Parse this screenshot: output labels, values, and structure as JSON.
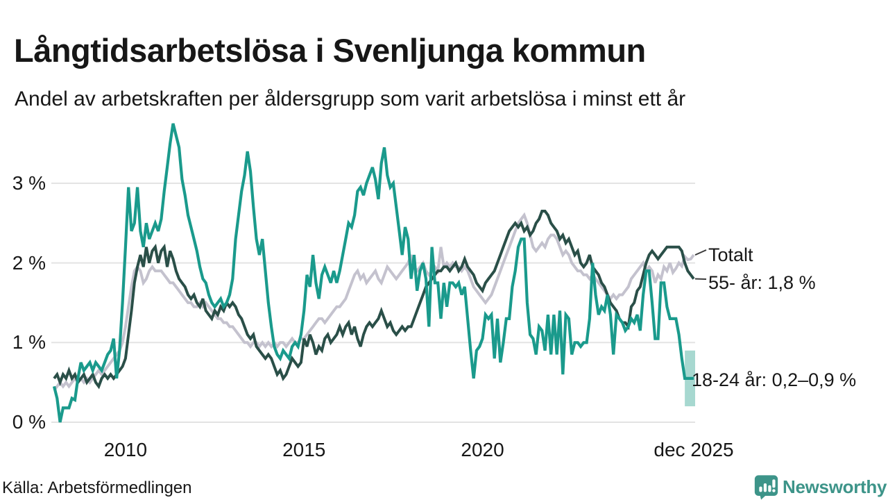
{
  "header": {
    "title": "Långtidsarbetslösa i Svenljunga kommun",
    "subtitle": "Andel av arbetskraften per åldersgrupp som varit arbetslösa i minst ett år"
  },
  "footer": {
    "source": "Källa: Arbetsförmedlingen",
    "brand": "Newsworthy"
  },
  "colors": {
    "teal_line": "#1a9a8c",
    "dark_line": "#2a4f48",
    "gray_line": "#c4c2ce",
    "band_fill": "#a7d8d0",
    "gridline": "#e3e3e3",
    "text": "#171717",
    "brand_teal": "#3d9489",
    "connector": "#3a3a3a"
  },
  "chart_data": {
    "type": "line",
    "title": "Långtidsarbetslösa i Svenljunga kommun",
    "subtitle": "Andel av arbetskraften per åldersgrupp som varit arbetslösa i minst ett år",
    "unit": "% av arbetskraften",
    "frequency": "monthly",
    "x_start": "2008-01",
    "x_end": "2025-12",
    "grid": "horizontal",
    "ylim": [
      0,
      3.9
    ],
    "y_ticks": [
      0,
      1,
      2,
      3
    ],
    "y_tick_labels": [
      "0 %",
      "1 %",
      "2 %",
      "3 %"
    ],
    "x_ticks": [
      {
        "label": "2010",
        "index": 24
      },
      {
        "label": "2015",
        "index": 84
      },
      {
        "label": "2020",
        "index": 144
      },
      {
        "label": "dec 2025",
        "index": 215
      }
    ],
    "series": [
      {
        "name": "Totalt",
        "color": "#c4c2ce",
        "stroke_width": 4,
        "values": [
          0.4,
          0.45,
          0.5,
          0.45,
          0.5,
          0.45,
          0.5,
          0.55,
          0.5,
          0.55,
          0.5,
          0.55,
          0.5,
          0.55,
          0.6,
          0.65,
          0.6,
          0.65,
          0.7,
          0.75,
          0.8,
          0.85,
          0.9,
          1.0,
          1.2,
          1.45,
          1.7,
          1.9,
          1.95,
          1.9,
          1.75,
          1.8,
          1.9,
          1.95,
          1.9,
          1.9,
          1.9,
          1.85,
          1.8,
          1.75,
          1.75,
          1.7,
          1.65,
          1.6,
          1.55,
          1.5,
          1.5,
          1.45,
          1.45,
          1.5,
          1.45,
          1.5,
          1.45,
          1.4,
          1.35,
          1.3,
          1.3,
          1.25,
          1.25,
          1.2,
          1.2,
          1.15,
          1.1,
          1.05,
          1.0,
          1.0,
          0.95,
          1.0,
          1.0,
          0.95,
          1.0,
          0.95,
          1.0,
          0.95,
          1.0,
          0.95,
          1.0,
          1.0,
          0.95,
          1.0,
          1.05,
          1.0,
          1.0,
          1.05,
          1.05,
          1.1,
          1.15,
          1.2,
          1.25,
          1.3,
          1.3,
          1.25,
          1.3,
          1.35,
          1.4,
          1.45,
          1.45,
          1.5,
          1.55,
          1.65,
          1.75,
          1.85,
          1.9,
          1.8,
          1.85,
          1.75,
          1.8,
          1.85,
          1.9,
          1.8,
          1.75,
          1.85,
          1.95,
          1.9,
          1.85,
          1.8,
          1.85,
          1.9,
          1.95,
          2.0,
          2.1,
          1.95,
          1.9,
          1.95,
          2.0,
          1.9,
          1.85,
          1.9,
          1.95,
          1.9,
          2.2,
          1.95,
          2.0,
          1.95,
          2.0,
          1.95,
          1.95,
          1.9,
          1.95,
          1.9,
          1.8,
          1.7,
          1.65,
          1.6,
          1.55,
          1.5,
          1.55,
          1.6,
          1.7,
          1.8,
          1.9,
          2.0,
          2.1,
          2.2,
          2.3,
          2.4,
          2.5,
          2.55,
          2.6,
          2.5,
          2.35,
          2.2,
          2.15,
          2.2,
          2.25,
          2.2,
          2.3,
          2.35,
          2.35,
          2.3,
          2.2,
          2.1,
          2.15,
          2.1,
          2.0,
          1.95,
          1.9,
          1.9,
          1.85,
          1.85,
          1.8,
          1.85,
          1.8,
          1.75,
          1.7,
          1.65,
          1.6,
          1.55,
          1.6,
          1.55,
          1.6,
          1.6,
          1.65,
          1.7,
          1.8,
          1.85,
          1.9,
          1.95,
          2.0,
          1.9,
          1.95,
          1.9,
          1.75,
          1.85,
          1.8,
          1.95,
          1.9,
          2.0,
          1.88,
          1.93,
          2.0,
          1.96,
          2.08,
          2.04,
          2.05,
          2.1
        ]
      },
      {
        "name": "55- år",
        "color": "#2a4f48",
        "stroke_width": 4,
        "values": [
          0.55,
          0.6,
          0.5,
          0.6,
          0.55,
          0.65,
          0.55,
          0.6,
          0.5,
          0.55,
          0.6,
          0.5,
          0.55,
          0.6,
          0.5,
          0.45,
          0.55,
          0.6,
          0.55,
          0.6,
          0.55,
          0.6,
          0.65,
          0.7,
          0.8,
          1.1,
          1.4,
          1.75,
          1.95,
          2.1,
          1.95,
          2.2,
          2.0,
          2.15,
          2.2,
          2.0,
          2.15,
          2.2,
          1.95,
          2.15,
          2.05,
          1.9,
          1.8,
          1.75,
          1.7,
          1.6,
          1.55,
          1.6,
          1.5,
          1.45,
          1.55,
          1.4,
          1.35,
          1.3,
          1.4,
          1.35,
          1.45,
          1.4,
          1.5,
          1.45,
          1.5,
          1.45,
          1.35,
          1.3,
          1.2,
          1.1,
          1.05,
          1.1,
          0.95,
          0.9,
          0.85,
          0.8,
          0.85,
          0.8,
          0.7,
          0.6,
          0.65,
          0.55,
          0.6,
          0.7,
          0.8,
          0.75,
          0.7,
          0.75,
          1.05,
          0.95,
          1.1,
          1.0,
          0.85,
          0.95,
          0.9,
          1.05,
          1.1,
          1.0,
          1.05,
          1.1,
          1.2,
          1.1,
          1.2,
          1.25,
          1.1,
          1.2,
          1.05,
          0.95,
          1.1,
          1.2,
          1.25,
          1.2,
          1.25,
          1.3,
          1.4,
          1.3,
          1.2,
          1.25,
          1.15,
          1.1,
          1.15,
          1.2,
          1.15,
          1.2,
          1.2,
          1.3,
          1.4,
          1.5,
          1.6,
          1.7,
          1.75,
          1.8,
          1.85,
          1.9,
          1.9,
          1.95,
          1.95,
          1.9,
          1.95,
          2.0,
          1.9,
          1.95,
          2.05,
          1.95,
          1.9,
          1.85,
          1.75,
          1.7,
          1.65,
          1.75,
          1.8,
          1.85,
          1.9,
          2.0,
          2.1,
          2.2,
          2.3,
          2.4,
          2.45,
          2.5,
          2.45,
          2.5,
          2.4,
          2.45,
          2.35,
          2.4,
          2.5,
          2.55,
          2.65,
          2.65,
          2.6,
          2.5,
          2.45,
          2.4,
          2.3,
          2.35,
          2.25,
          2.3,
          2.2,
          2.1,
          2.15,
          2.0,
          1.95,
          2.0,
          2.1,
          1.95,
          1.9,
          1.85,
          1.75,
          1.7,
          1.6,
          1.5,
          1.45,
          1.4,
          1.3,
          1.25,
          1.25,
          1.2,
          1.45,
          1.5,
          1.65,
          1.7,
          1.85,
          2.0,
          2.1,
          2.15,
          2.1,
          2.05,
          2.1,
          2.15,
          2.2,
          2.2,
          2.2,
          2.2,
          2.2,
          2.15,
          2.0,
          1.9,
          1.85,
          1.8
        ]
      },
      {
        "name": "18-24 år",
        "color": "#1a9a8c",
        "stroke_width": 4.2,
        "values": [
          0.45,
          0.3,
          0.0,
          0.18,
          0.18,
          0.18,
          0.3,
          0.28,
          0.55,
          0.75,
          0.65,
          0.7,
          0.75,
          0.65,
          0.75,
          0.7,
          0.65,
          0.75,
          0.85,
          0.9,
          1.05,
          0.55,
          0.9,
          1.5,
          2.2,
          2.95,
          2.4,
          2.5,
          2.95,
          2.4,
          2.2,
          2.5,
          2.3,
          2.4,
          2.5,
          2.4,
          2.55,
          2.9,
          3.2,
          3.5,
          3.75,
          3.6,
          3.45,
          3.05,
          2.85,
          2.6,
          2.45,
          2.3,
          2.15,
          1.95,
          1.8,
          1.75,
          1.6,
          1.5,
          1.45,
          1.5,
          1.55,
          1.45,
          1.5,
          1.6,
          1.8,
          2.3,
          2.6,
          2.9,
          3.1,
          3.4,
          3.15,
          2.7,
          2.3,
          2.1,
          2.3,
          1.9,
          1.5,
          1.2,
          0.95,
          0.85,
          0.8,
          0.9,
          0.85,
          0.8,
          0.95,
          1.0,
          0.95,
          1.1,
          1.4,
          1.85,
          1.7,
          2.1,
          1.75,
          1.55,
          1.85,
          1.95,
          1.85,
          1.75,
          1.9,
          1.75,
          1.9,
          2.1,
          2.3,
          2.5,
          2.45,
          2.6,
          2.9,
          2.95,
          2.85,
          3.0,
          3.1,
          3.2,
          3.05,
          2.8,
          3.25,
          3.45,
          3.1,
          2.95,
          3.0,
          2.7,
          2.4,
          2.1,
          2.45,
          2.3,
          1.8,
          2.1,
          1.65,
          1.9,
          2.0,
          1.8,
          1.2,
          2.2,
          1.75,
          1.75,
          1.3,
          1.75,
          1.45,
          1.75,
          1.75,
          1.7,
          1.75,
          1.6,
          1.7,
          1.3,
          0.9,
          0.55,
          0.9,
          0.95,
          1.05,
          1.35,
          1.3,
          1.35,
          0.8,
          1.3,
          0.75,
          1.0,
          1.3,
          1.3,
          1.7,
          1.9,
          2.2,
          2.3,
          2.3,
          1.5,
          1.1,
          1.05,
          0.85,
          1.2,
          1.15,
          0.9,
          1.35,
          0.85,
          1.35,
          0.85,
          1.4,
          0.6,
          1.35,
          1.3,
          0.85,
          1.0,
          1.0,
          0.95,
          1.0,
          1.0,
          1.3,
          2.0,
          1.6,
          1.35,
          1.45,
          1.4,
          1.6,
          1.35,
          0.85,
          1.35,
          1.3,
          1.25,
          1.15,
          1.2,
          1.3,
          1.25,
          1.35,
          1.15,
          1.6,
          1.9,
          1.9,
          1.5,
          1.05,
          1.05,
          1.75,
          1.75,
          1.45,
          1.3,
          1.3,
          1.3,
          1.1,
          0.8,
          0.55,
          0.55,
          0.55,
          0.55
        ]
      }
    ],
    "uncertainty_band": {
      "series": "18-24 år",
      "x_start_index": 212,
      "x_end_index": 215,
      "y_low": 0.2,
      "y_high": 0.9,
      "color": "#a7d8d0"
    },
    "annotations": {
      "totalt": "Totalt",
      "age55": "55- år: 1,8 %",
      "age1824": "18-24 år: 0,2–0,9 %"
    },
    "end_values": {
      "totalt_pct": 2.1,
      "age55_pct": 1.8,
      "age1824_pct_range": [
        0.2,
        0.9
      ]
    }
  }
}
